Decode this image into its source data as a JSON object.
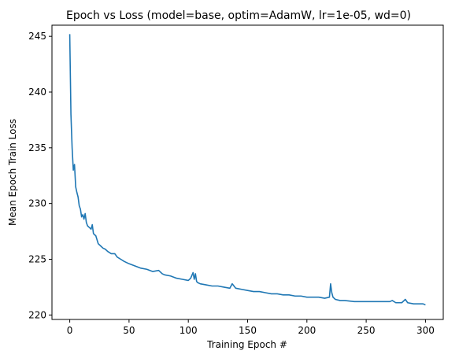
{
  "chart_data": {
    "type": "line",
    "title": "Epoch vs Loss (model=base, optim=AdamW, lr=1e-05, wd=0)",
    "xlabel": "Training Epoch #",
    "ylabel": "Mean Epoch Train Loss",
    "xlim": [
      -15,
      315
    ],
    "ylim": [
      219.6,
      246.0
    ],
    "xticks": [
      0,
      50,
      100,
      150,
      200,
      250,
      300
    ],
    "yticks": [
      220,
      225,
      230,
      235,
      240,
      245
    ],
    "grid": false,
    "legend": "none",
    "series": [
      {
        "color": "#1f77b4",
        "x": [
          0,
          1,
          2,
          3,
          4,
          5,
          6,
          7,
          8,
          9,
          10,
          11,
          12,
          13,
          14,
          15,
          16,
          17,
          18,
          19,
          20,
          22,
          24,
          26,
          28,
          30,
          32,
          35,
          38,
          40,
          43,
          46,
          50,
          55,
          60,
          65,
          70,
          75,
          78,
          80,
          85,
          90,
          95,
          100,
          102,
          104,
          105,
          106,
          107,
          108,
          110,
          115,
          120,
          125,
          130,
          135,
          137,
          140,
          145,
          150,
          155,
          160,
          165,
          170,
          175,
          180,
          185,
          190,
          195,
          200,
          205,
          210,
          215,
          219,
          220,
          221,
          222,
          224,
          228,
          232,
          240,
          250,
          260,
          270,
          272,
          275,
          280,
          283,
          285,
          290,
          295,
          298,
          300
        ],
        "y": [
          245.2,
          238.0,
          235.0,
          233.0,
          233.5,
          231.5,
          231.0,
          230.6,
          229.8,
          229.5,
          228.8,
          229.0,
          228.6,
          229.1,
          228.3,
          228.0,
          227.9,
          227.8,
          227.7,
          228.1,
          227.3,
          227.1,
          226.4,
          226.2,
          226.0,
          225.9,
          225.7,
          225.5,
          225.5,
          225.2,
          225.0,
          224.8,
          224.6,
          224.4,
          224.2,
          224.1,
          223.9,
          224.0,
          223.7,
          223.6,
          223.5,
          223.3,
          223.2,
          223.1,
          223.3,
          223.8,
          223.2,
          223.7,
          223.0,
          222.9,
          222.8,
          222.7,
          222.6,
          222.6,
          222.5,
          222.4,
          222.8,
          222.4,
          222.3,
          222.2,
          222.1,
          222.1,
          222.0,
          221.9,
          221.9,
          221.8,
          221.8,
          221.7,
          221.7,
          221.6,
          221.6,
          221.6,
          221.5,
          221.6,
          222.8,
          222.0,
          221.6,
          221.4,
          221.3,
          221.3,
          221.2,
          221.2,
          221.2,
          221.2,
          221.3,
          221.1,
          221.1,
          221.4,
          221.1,
          221.0,
          221.0,
          221.0,
          220.9
        ]
      }
    ]
  }
}
